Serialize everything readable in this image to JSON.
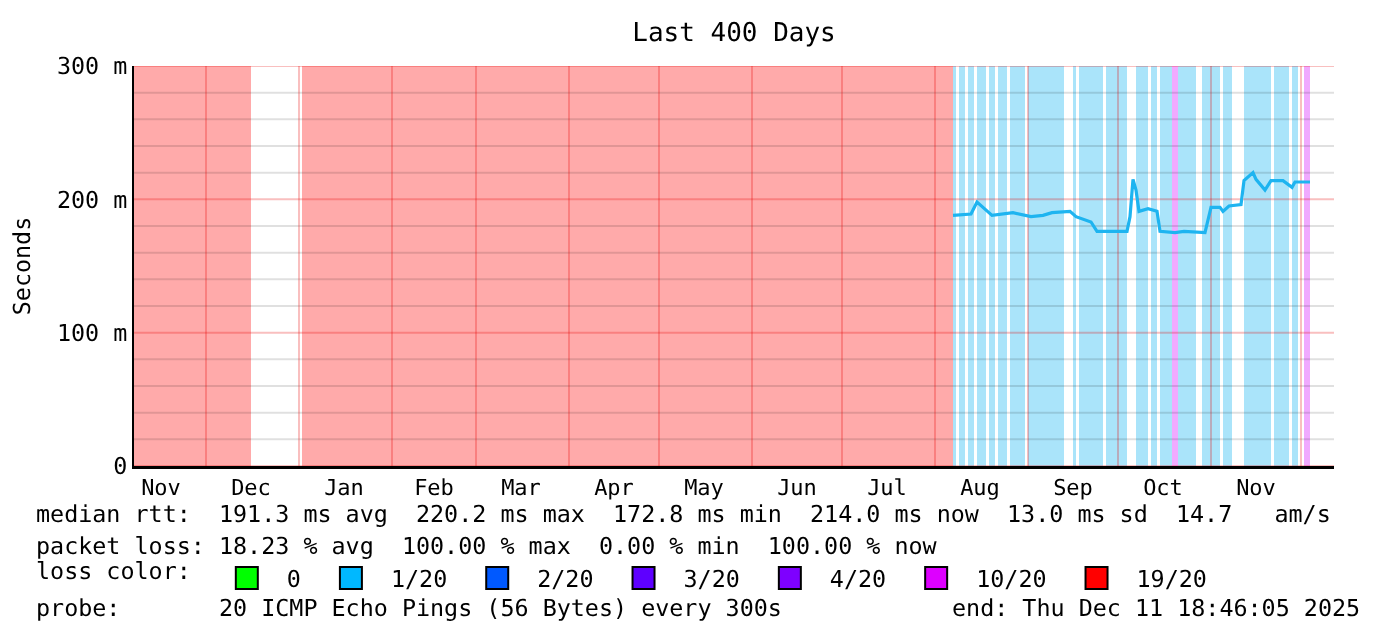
{
  "chart_data": {
    "type": "line",
    "title": "Last 400 Days",
    "ylabel": "Seconds",
    "x": [
      "2025-08-07",
      "2025-08-13",
      "2025-08-15",
      "2025-08-17",
      "2025-08-20",
      "2025-08-27",
      "2025-09-02",
      "2025-09-06",
      "2025-09-09",
      "2025-09-15",
      "2025-09-17",
      "2025-09-22",
      "2025-09-24",
      "2025-10-04",
      "2025-10-05",
      "2025-10-06",
      "2025-10-07",
      "2025-10-08",
      "2025-10-11",
      "2025-10-14",
      "2025-10-15",
      "2025-10-20",
      "2025-10-23",
      "2025-10-30",
      "2025-11-01",
      "2025-11-04",
      "2025-11-05",
      "2025-11-07",
      "2025-11-11",
      "2025-11-12",
      "2025-11-15",
      "2025-11-16",
      "2025-11-19",
      "2025-11-21",
      "2025-11-25",
      "2025-11-28",
      "2025-11-29",
      "2025-12-04"
    ],
    "series": [
      {
        "color": "#1eb4f0",
        "values": [
          188,
          189,
          198,
          194,
          188,
          190,
          187,
          188,
          190,
          191,
          187,
          183,
          176,
          176,
          187,
          215,
          207,
          191,
          193,
          191,
          176,
          175,
          176,
          175,
          194,
          194,
          191,
          195,
          196,
          214,
          220,
          215,
          207,
          214,
          214,
          209,
          213,
          213
        ]
      },
      {
        "type": "scatter",
        "name": "0",
        "color": "#00ff00",
        "values": [
          null,
          null,
          null,
          null,
          null,
          null,
          null,
          null,
          null,
          null,
          null,
          null,
          null,
          null,
          null,
          null,
          null,
          null,
          null,
          null,
          null,
          null,
          null,
          null,
          null,
          null,
          null,
          null,
          null,
          null,
          null,
          null,
          null,
          null,
          null,
          null,
          null,
          null
        ]
      },
      {
        "type": "scatter",
        "name": "1/20",
        "color": "#00b8ff",
        "values": [
          null,
          null,
          null,
          null,
          null,
          null,
          null,
          null,
          null,
          null,
          null,
          null,
          null,
          null,
          null,
          null,
          null,
          null,
          null,
          null,
          null,
          null,
          null,
          null,
          null,
          null,
          null,
          null,
          null,
          null,
          null,
          null,
          null,
          null,
          null,
          null,
          null,
          null
        ]
      },
      {
        "type": "scatter",
        "name": "2/20",
        "color": "#0059ff",
        "values": [
          null,
          null,
          null,
          null,
          null,
          null,
          null,
          null,
          null,
          null,
          null,
          null,
          null,
          null,
          null,
          null,
          null,
          null,
          null,
          null,
          null,
          null,
          null,
          null,
          null,
          null,
          null,
          null,
          null,
          null,
          null,
          null,
          null,
          null,
          null,
          null,
          null,
          null
        ]
      },
      {
        "type": "scatter",
        "name": "3/20",
        "color": "#5e00ff",
        "values": [
          null,
          null,
          null,
          null,
          null,
          null,
          null,
          null,
          null,
          null,
          null,
          null,
          null,
          null,
          null,
          null,
          null,
          null,
          null,
          null,
          null,
          null,
          null,
          null,
          null,
          null,
          null,
          null,
          null,
          null,
          null,
          null,
          null,
          null,
          null,
          null,
          null,
          null
        ]
      },
      {
        "type": "scatter",
        "name": "4/20",
        "color": "#7e00ff",
        "values": [
          null,
          null,
          null,
          null,
          null,
          null,
          null,
          null,
          null,
          null,
          null,
          null,
          null,
          null,
          null,
          null,
          null,
          null,
          null,
          null,
          null,
          null,
          null,
          null,
          null,
          null,
          null,
          null,
          null,
          null,
          null,
          null,
          null,
          null,
          null,
          null,
          null,
          null
        ]
      },
      {
        "type": "scatter",
        "name": "10/20",
        "color": "#dd00ff",
        "values": [
          null,
          null,
          null,
          null,
          null,
          null,
          null,
          null,
          null,
          null,
          null,
          null,
          null,
          null,
          null,
          null,
          null,
          null,
          null,
          null,
          null,
          null,
          null,
          null,
          null,
          null,
          null,
          null,
          null,
          null,
          null,
          null,
          null,
          null,
          null,
          null,
          null,
          null
        ]
      },
      {
        "type": "scatter",
        "name": "19/20",
        "color": "#ff0000",
        "values": [
          null,
          null,
          null,
          null,
          null,
          null,
          null,
          null,
          null,
          null,
          null,
          null,
          null,
          null,
          null,
          null,
          null,
          null,
          null,
          null,
          null,
          null,
          null,
          null,
          null,
          null,
          null,
          null,
          null,
          null,
          null,
          null,
          null,
          null,
          null,
          null,
          null,
          null
        ]
      }
    ],
    "legend_title": "loss color:",
    "legend": "bottom",
    "xlim": [
      "2024-11-07",
      "2025-12-12"
    ],
    "xticks": [
      {
        "value": "2024-11-16",
        "label": "Nov"
      },
      {
        "value": "2024-12-01",
        "label": null
      },
      {
        "value": "2024-12-16",
        "label": "Dec"
      },
      {
        "value": "2025-01-01",
        "label": null
      },
      {
        "value": "2025-01-16",
        "label": "Jan"
      },
      {
        "value": "2025-02-01",
        "label": null
      },
      {
        "value": "2025-02-15",
        "label": "Feb"
      },
      {
        "value": "2025-03-01",
        "label": null
      },
      {
        "value": "2025-03-16",
        "label": "Mar"
      },
      {
        "value": "2025-04-01",
        "label": null
      },
      {
        "value": "2025-04-16",
        "label": "Apr"
      },
      {
        "value": "2025-05-01",
        "label": null
      },
      {
        "value": "2025-05-16",
        "label": "May"
      },
      {
        "value": "2025-06-01",
        "label": null
      },
      {
        "value": "2025-06-16",
        "label": "Jun"
      },
      {
        "value": "2025-07-01",
        "label": null
      },
      {
        "value": "2025-07-16",
        "label": "Jul"
      },
      {
        "value": "2025-08-01",
        "label": null
      },
      {
        "value": "2025-08-16",
        "label": "Aug"
      },
      {
        "value": "2025-09-01",
        "label": null
      },
      {
        "value": "2025-09-16",
        "label": "Sep"
      },
      {
        "value": "2025-10-01",
        "label": null
      },
      {
        "value": "2025-10-16",
        "label": "Oct"
      },
      {
        "value": "2025-11-01",
        "label": null
      },
      {
        "value": "2025-11-16",
        "label": "Nov"
      },
      {
        "value": "2025-12-01",
        "label": null
      }
    ],
    "ylim": [
      0,
      300
    ],
    "yticks": [
      0,
      {
        "value": 20,
        "label": null
      },
      {
        "value": 40,
        "label": null
      },
      {
        "value": 60,
        "label": null
      },
      {
        "value": 80,
        "label": null
      },
      {
        "value": 100,
        "label": "100 m"
      },
      {
        "value": 120,
        "label": null
      },
      {
        "value": 140,
        "label": null
      },
      {
        "value": 160,
        "label": null
      },
      {
        "value": 180,
        "label": null
      },
      {
        "value": 200,
        "label": "200 m"
      },
      {
        "value": 220,
        "label": null
      },
      {
        "value": 240,
        "label": null
      },
      {
        "value": 260,
        "label": null
      },
      {
        "value": 280,
        "label": null
      },
      {
        "value": 300,
        "label": "300 m"
      }
    ],
    "grid": true,
    "bands": [
      {
        "axis": "x",
        "from": "2024-11-07",
        "to": "2024-12-16",
        "color": "#ffaaaa"
      },
      {
        "axis": "x",
        "from": "2025-01-02",
        "to": "2025-08-07",
        "color": "#ffaaaa"
      },
      {
        "axis": "x",
        "from": "2025-08-07",
        "to": "2025-08-08",
        "color": "#aae4fa"
      },
      {
        "axis": "x",
        "from": "2025-08-09",
        "to": "2025-08-11",
        "color": "#aae4fa"
      },
      {
        "axis": "x",
        "from": "2025-08-12",
        "to": "2025-08-14",
        "color": "#aae4fa"
      },
      {
        "axis": "x",
        "from": "2025-08-15",
        "to": "2025-08-18",
        "color": "#aae4fa"
      },
      {
        "axis": "x",
        "from": "2025-08-19",
        "to": "2025-08-21",
        "color": "#aae4fa"
      },
      {
        "axis": "x",
        "from": "2025-08-22",
        "to": "2025-08-25",
        "color": "#aae4fa"
      },
      {
        "axis": "x",
        "from": "2025-08-26",
        "to": "2025-08-31",
        "color": "#aae4fa"
      },
      {
        "axis": "x",
        "from": "2025-09-01",
        "to": "2025-09-13",
        "color": "#aae4fa"
      },
      {
        "axis": "x",
        "from": "2025-09-16",
        "to": "2025-09-17",
        "color": "#aae4fa"
      },
      {
        "axis": "x",
        "from": "2025-09-18",
        "to": "2025-09-26",
        "color": "#aae4fa"
      },
      {
        "axis": "x",
        "from": "2025-09-27",
        "to": "2025-10-04",
        "color": "#aae4fa"
      },
      {
        "axis": "x",
        "from": "2025-10-07",
        "to": "2025-10-11",
        "color": "#aae4fa"
      },
      {
        "axis": "x",
        "from": "2025-10-12",
        "to": "2025-10-14",
        "color": "#aae4fa"
      },
      {
        "axis": "x",
        "from": "2025-10-15",
        "to": "2025-10-19",
        "color": "#aae4fa"
      },
      {
        "axis": "x",
        "from": "2025-10-19",
        "to": "2025-10-21",
        "color": "#f0aaff"
      },
      {
        "axis": "x",
        "from": "2025-10-21",
        "to": "2025-10-27",
        "color": "#aae4fa"
      },
      {
        "axis": "x",
        "from": "2025-10-29",
        "to": "2025-11-04",
        "color": "#aae4fa"
      },
      {
        "axis": "x",
        "from": "2025-11-05",
        "to": "2025-11-08",
        "color": "#aae4fa"
      },
      {
        "axis": "x",
        "from": "2025-11-12",
        "to": "2025-11-21",
        "color": "#aae4fa"
      },
      {
        "axis": "x",
        "from": "2025-11-22",
        "to": "2025-11-27",
        "color": "#aae4fa"
      },
      {
        "axis": "x",
        "from": "2025-11-28",
        "to": "2025-11-30",
        "color": "#aae4fa"
      },
      {
        "axis": "x",
        "from": "2025-12-02",
        "to": "2025-12-04",
        "color": "#f0aaff"
      }
    ],
    "annotations": [
      "median rtt:  191.3 ms avg  220.2 ms max  172.8 ms min  214.0 ms now  13.0 ms sd  14.7   am/s",
      "packet loss: 18.23 % avg  100.00 % max  0.00 % min  100.00 % now",
      "probe:       20 ICMP Echo Pings (56 Bytes) every 300s",
      "end: Thu Dec 11 18:46:05 2025"
    ]
  }
}
